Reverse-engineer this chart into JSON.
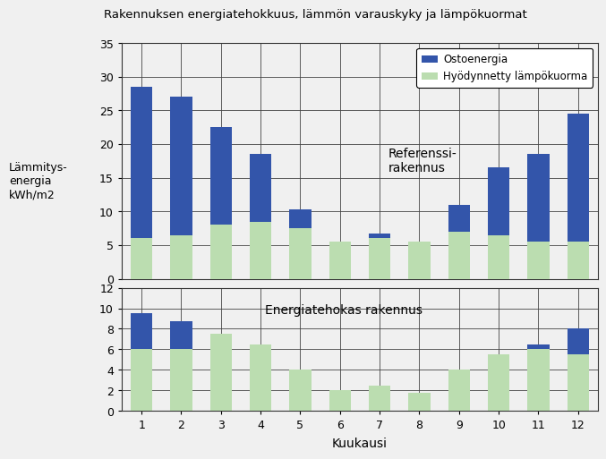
{
  "title": "Rakennuksen energiatehokkuus, lämmön varauskyky ja lämpökuormat",
  "xlabel": "Kuukausi",
  "ylabel": "Lämmitys-\nenergia\nkWh/m2",
  "months": [
    1,
    2,
    3,
    4,
    5,
    6,
    7,
    8,
    9,
    10,
    11,
    12
  ],
  "ref_ostoenergia": [
    28.5,
    27.0,
    22.5,
    18.5,
    10.3,
    5.5,
    6.7,
    5.5,
    11.0,
    16.5,
    18.5,
    24.5
  ],
  "ref_lampokuorma": [
    6.0,
    6.5,
    8.0,
    8.5,
    7.5,
    5.5,
    6.0,
    5.5,
    7.0,
    6.5,
    5.5,
    5.5
  ],
  "eff_ostoenergia": [
    9.5,
    8.7,
    7.5,
    6.5,
    0.0,
    0.0,
    0.0,
    0.5,
    0.0,
    5.5,
    6.5,
    8.0
  ],
  "eff_lampokuorma": [
    6.0,
    6.0,
    7.5,
    6.5,
    4.0,
    2.0,
    2.5,
    1.8,
    4.0,
    5.5,
    6.0,
    5.5
  ],
  "ref_ylim": [
    0,
    35
  ],
  "ref_yticks": [
    0,
    5,
    10,
    15,
    20,
    25,
    30,
    35
  ],
  "eff_ylim": [
    0,
    12
  ],
  "eff_yticks": [
    0,
    2,
    4,
    6,
    8,
    10,
    12
  ],
  "color_ostoenergia": "#3355AA",
  "color_lampokuorma": "#BBDDB0",
  "ref_label": "Referenssi-\nrakennus",
  "eff_label": "Energiatehokas rakennus",
  "legend_ostoenergia": "Ostoenergia",
  "legend_lampokuorma": "Hyödynnetty lämpökuorma",
  "background_color": "#f0f0f0",
  "plot_bg": "#f0f0f0",
  "grid_color": "#555555",
  "spine_color": "#333333"
}
